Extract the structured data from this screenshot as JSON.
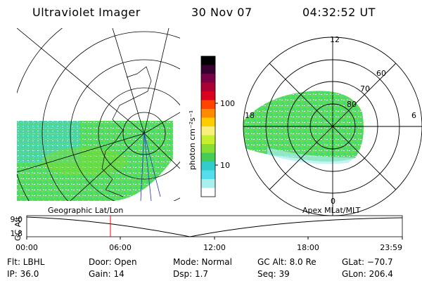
{
  "header": {
    "title": "Ultraviolet Imager",
    "date": "30 Nov 07",
    "time": "04:32:52 UT"
  },
  "left_panel": {
    "caption": "Geographic Lat/Lon"
  },
  "right_panel": {
    "caption": "Apex  MLat/MLT",
    "mlt_labels": [
      "12",
      "18",
      "6",
      "0"
    ],
    "mlat_labels": [
      "60",
      "70",
      "80"
    ]
  },
  "colorbar": {
    "unit_label": "photon cm⁻²s⁻¹",
    "tick_labels": [
      "100",
      "10"
    ],
    "colors": [
      "#000000",
      "#3a0030",
      "#7a0044",
      "#aa0033",
      "#d90020",
      "#ff4400",
      "#ff8c00",
      "#ffcc00",
      "#f7f07a",
      "#c8ee30",
      "#88dd33",
      "#44cc55",
      "#33cccc",
      "#55ddee",
      "#aaeeee",
      "#ffffff"
    ]
  },
  "altitude_plot": {
    "axis_label": "GC Alt",
    "y_ticks": [
      "9.0",
      "1.8"
    ],
    "x_ticks": [
      "00:00",
      "06:00",
      "12:00",
      "18:00",
      "23:59"
    ],
    "marker_time": "04:32",
    "line_color": "#000000",
    "marker_color": "#ff0000"
  },
  "status": {
    "flt": "Flt: LBHL",
    "ip": "IP: 36.0",
    "door": "Door: Open",
    "gain": "Gain: 14",
    "mode": "Mode: Normal",
    "dsp": "Dsp:     1.7",
    "gcalt": "GC Alt: 8.0 Re",
    "seq": "Seq: 39",
    "glat": "GLat: −70.7",
    "glon": "GLon: 206.4"
  }
}
